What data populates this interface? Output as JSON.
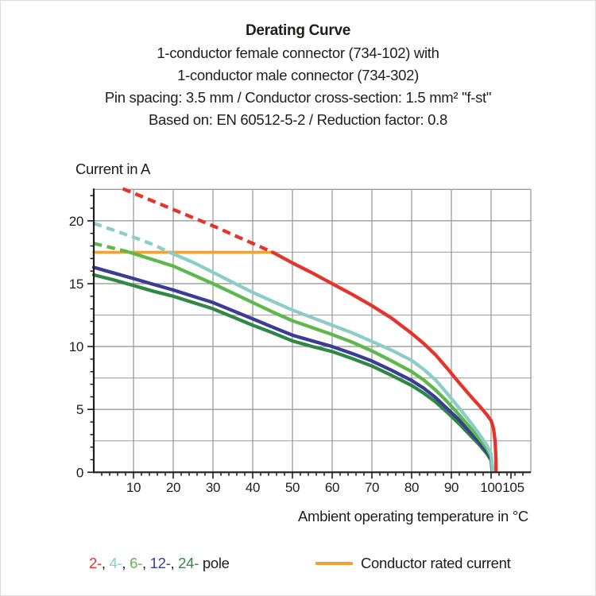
{
  "header": {
    "title": "Derating Curve",
    "subtitle_lines": [
      "1-conductor female connector (734-102) with",
      "1-conductor male connector (734-302)",
      "Pin spacing: 3.5 mm / Conductor cross-section: 1.5 mm² \"f-st\"",
      "Based on: EN 60512-5-2 / Reduction factor: 0.8"
    ]
  },
  "chart_data": {
    "type": "line",
    "title": "Derating Curve",
    "ylabel": "Current in A",
    "xlabel": "Ambient operating temperature in °C",
    "xlim": [
      0,
      110
    ],
    "ylim": [
      0,
      22.5
    ],
    "grid": "on",
    "x_tick_labels": [
      "10",
      "20",
      "30",
      "40",
      "50",
      "60",
      "70",
      "80",
      "90",
      "100",
      "105"
    ],
    "x_tick_values": [
      10,
      20,
      30,
      40,
      50,
      60,
      70,
      80,
      90,
      100,
      105
    ],
    "x_minor_tick_step": 2,
    "y_tick_labels": [
      "0",
      "5",
      "10",
      "15",
      "20"
    ],
    "y_tick_values": [
      0,
      5,
      10,
      15,
      20
    ],
    "y_minor_tick_step": 1,
    "x_gridlines": [
      10,
      20,
      30,
      40,
      50,
      60,
      70,
      80,
      90,
      100,
      110
    ],
    "y_gridlines_major": [
      5,
      10,
      15,
      20,
      22.5
    ],
    "y_gridlines_minor": [
      2.5,
      7.5,
      12.5,
      17.5
    ],
    "grid_color": "#9c9c9c",
    "grid_minor_color": "#acacac",
    "axis_color": "#1d1d1b",
    "series": [
      {
        "name": "Conductor rated current",
        "color": "#F5A033",
        "width": 3.6,
        "segments": [
          {
            "dashed": false,
            "points": [
              [
                0,
                17.5
              ],
              [
                45.3,
                17.5
              ]
            ]
          }
        ]
      },
      {
        "name": "24-pole",
        "color": "#2F8843",
        "width": 4.3,
        "segments": [
          {
            "dashed": false,
            "points": [
              [
                0,
                15.7
              ],
              [
                5,
                15.3
              ],
              [
                10,
                14.85
              ],
              [
                15,
                14.4
              ],
              [
                20,
                14.0
              ],
              [
                25,
                13.5
              ],
              [
                30,
                13.0
              ],
              [
                35,
                12.35
              ],
              [
                40,
                11.7
              ],
              [
                45,
                11.1
              ],
              [
                50,
                10.45
              ],
              [
                55,
                10.0
              ],
              [
                60,
                9.6
              ],
              [
                65,
                9.05
              ],
              [
                70,
                8.45
              ],
              [
                75,
                7.7
              ],
              [
                80,
                6.9
              ],
              [
                83,
                6.3
              ],
              [
                86,
                5.6
              ],
              [
                89,
                4.75
              ],
              [
                92,
                3.85
              ],
              [
                95,
                2.85
              ],
              [
                97,
                2.2
              ],
              [
                99,
                1.45
              ],
              [
                100,
                0.95
              ],
              [
                100.25,
                0.15
              ]
            ]
          }
        ]
      },
      {
        "name": "12-pole",
        "color": "#3C3C96",
        "width": 4.3,
        "segments": [
          {
            "dashed": false,
            "points": [
              [
                0,
                16.3
              ],
              [
                5,
                15.85
              ],
              [
                10,
                15.4
              ],
              [
                15,
                14.95
              ],
              [
                20,
                14.5
              ],
              [
                25,
                14.0
              ],
              [
                30,
                13.5
              ],
              [
                35,
                12.85
              ],
              [
                40,
                12.2
              ],
              [
                45,
                11.55
              ],
              [
                50,
                10.9
              ],
              [
                55,
                10.45
              ],
              [
                60,
                10.0
              ],
              [
                65,
                9.45
              ],
              [
                70,
                8.85
              ],
              [
                75,
                8.1
              ],
              [
                80,
                7.3
              ],
              [
                83,
                6.7
              ],
              [
                86,
                5.95
              ],
              [
                89,
                5.05
              ],
              [
                92,
                4.15
              ],
              [
                95,
                3.1
              ],
              [
                97,
                2.4
              ],
              [
                99,
                1.6
              ],
              [
                100,
                1.05
              ],
              [
                100.3,
                0.15
              ]
            ]
          }
        ]
      },
      {
        "name": "6-pole",
        "color": "#5FB84C",
        "width": 4.3,
        "segments": [
          {
            "dashed": true,
            "points": [
              [
                0,
                18.2
              ],
              [
                4,
                17.9
              ],
              [
                9,
                17.5
              ]
            ]
          },
          {
            "dashed": false,
            "points": [
              [
                9,
                17.5
              ],
              [
                15,
                16.9
              ],
              [
                20,
                16.4
              ],
              [
                25,
                15.7
              ],
              [
                30,
                15.0
              ],
              [
                35,
                14.25
              ],
              [
                40,
                13.5
              ],
              [
                45,
                12.75
              ],
              [
                50,
                12.05
              ],
              [
                55,
                11.5
              ],
              [
                60,
                10.95
              ],
              [
                65,
                10.35
              ],
              [
                70,
                9.65
              ],
              [
                75,
                8.85
              ],
              [
                80,
                8.0
              ],
              [
                83,
                7.35
              ],
              [
                86,
                6.55
              ],
              [
                89,
                5.6
              ],
              [
                92,
                4.55
              ],
              [
                95,
                3.45
              ],
              [
                97,
                2.7
              ],
              [
                99,
                1.85
              ],
              [
                100,
                1.25
              ],
              [
                100.35,
                0.15
              ]
            ]
          }
        ]
      },
      {
        "name": "4-pole",
        "color": "#8CCEC7",
        "width": 4.3,
        "segments": [
          {
            "dashed": true,
            "points": [
              [
                0,
                19.8
              ],
              [
                5,
                19.25
              ],
              [
                10,
                18.7
              ],
              [
                15,
                18.1
              ],
              [
                19,
                17.5
              ]
            ]
          },
          {
            "dashed": false,
            "points": [
              [
                19,
                17.5
              ],
              [
                25,
                16.7
              ],
              [
                30,
                15.9
              ],
              [
                35,
                15.1
              ],
              [
                40,
                14.3
              ],
              [
                45,
                13.6
              ],
              [
                50,
                12.9
              ],
              [
                55,
                12.3
              ],
              [
                60,
                11.7
              ],
              [
                65,
                11.1
              ],
              [
                70,
                10.4
              ],
              [
                75,
                9.7
              ],
              [
                80,
                8.9
              ],
              [
                83,
                8.2
              ],
              [
                86,
                7.35
              ],
              [
                89,
                6.25
              ],
              [
                92,
                5.1
              ],
              [
                95,
                3.9
              ],
              [
                97,
                3.05
              ],
              [
                99,
                2.1
              ],
              [
                100,
                1.45
              ],
              [
                100.45,
                0.15
              ]
            ]
          }
        ]
      },
      {
        "name": "2-pole",
        "color": "#E5342B",
        "width": 4.3,
        "segments": [
          {
            "dashed": true,
            "points": [
              [
                7.3,
                22.55
              ],
              [
                10,
                22.2
              ],
              [
                15,
                21.55
              ],
              [
                20,
                20.9
              ],
              [
                25,
                20.25
              ],
              [
                30,
                19.6
              ],
              [
                35,
                18.9
              ],
              [
                40,
                18.2
              ],
              [
                45,
                17.5
              ]
            ]
          },
          {
            "dashed": false,
            "points": [
              [
                45,
                17.5
              ],
              [
                50,
                16.65
              ],
              [
                55,
                15.85
              ],
              [
                60,
                15.0
              ],
              [
                65,
                14.15
              ],
              [
                70,
                13.25
              ],
              [
                75,
                12.25
              ],
              [
                80,
                11.05
              ],
              [
                83,
                10.25
              ],
              [
                86,
                9.35
              ],
              [
                89,
                8.25
              ],
              [
                92,
                7.1
              ],
              [
                95,
                6.0
              ],
              [
                97,
                5.3
              ],
              [
                99,
                4.55
              ],
              [
                100,
                4.1
              ],
              [
                100.6,
                3.5
              ],
              [
                101,
                2.5
              ],
              [
                101.2,
                1.2
              ],
              [
                101.25,
                0.15
              ]
            ]
          }
        ]
      }
    ]
  },
  "legend": {
    "pole_items": [
      {
        "label": "2-",
        "color": "#E5342B"
      },
      {
        "label": "4-",
        "color": "#8CCEC7"
      },
      {
        "label": "6-",
        "color": "#5FB84C"
      },
      {
        "label": "12-",
        "color": "#3C3C96"
      },
      {
        "label": "24-",
        "color": "#2F8843"
      }
    ],
    "separator": ", ",
    "pole_suffix": " pole",
    "rated_label": "Conductor rated current",
    "rated_color": "#F5A033"
  }
}
